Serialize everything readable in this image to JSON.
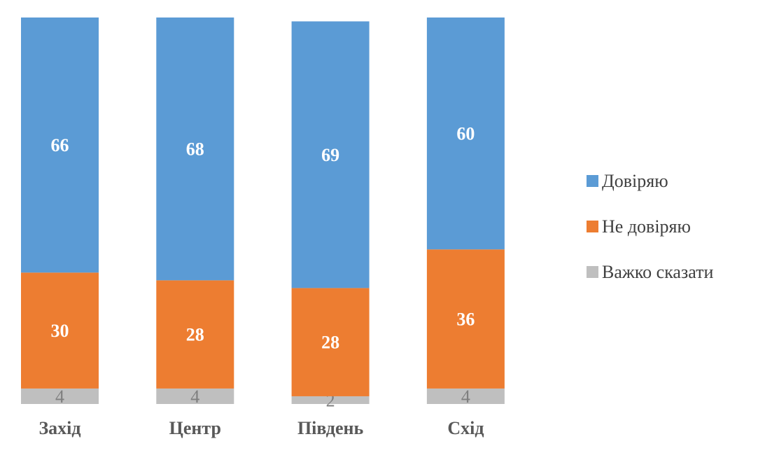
{
  "chart_data": {
    "type": "bar",
    "stacked": true,
    "categories": [
      "Захід",
      "Центр",
      "Південь",
      "Схід"
    ],
    "series": [
      {
        "name": "Довіряю",
        "values": [
          66,
          68,
          69,
          60
        ],
        "color": "#5b9bd5"
      },
      {
        "name": "Не довіряю",
        "values": [
          30,
          28,
          28,
          36
        ],
        "color": "#ed7d31"
      },
      {
        "name": "Важко сказати",
        "values": [
          4,
          4,
          2,
          4
        ],
        "color": "#bfbfbf"
      }
    ],
    "ylim": [
      0,
      100
    ],
    "grid": false,
    "legend_position": "right"
  }
}
